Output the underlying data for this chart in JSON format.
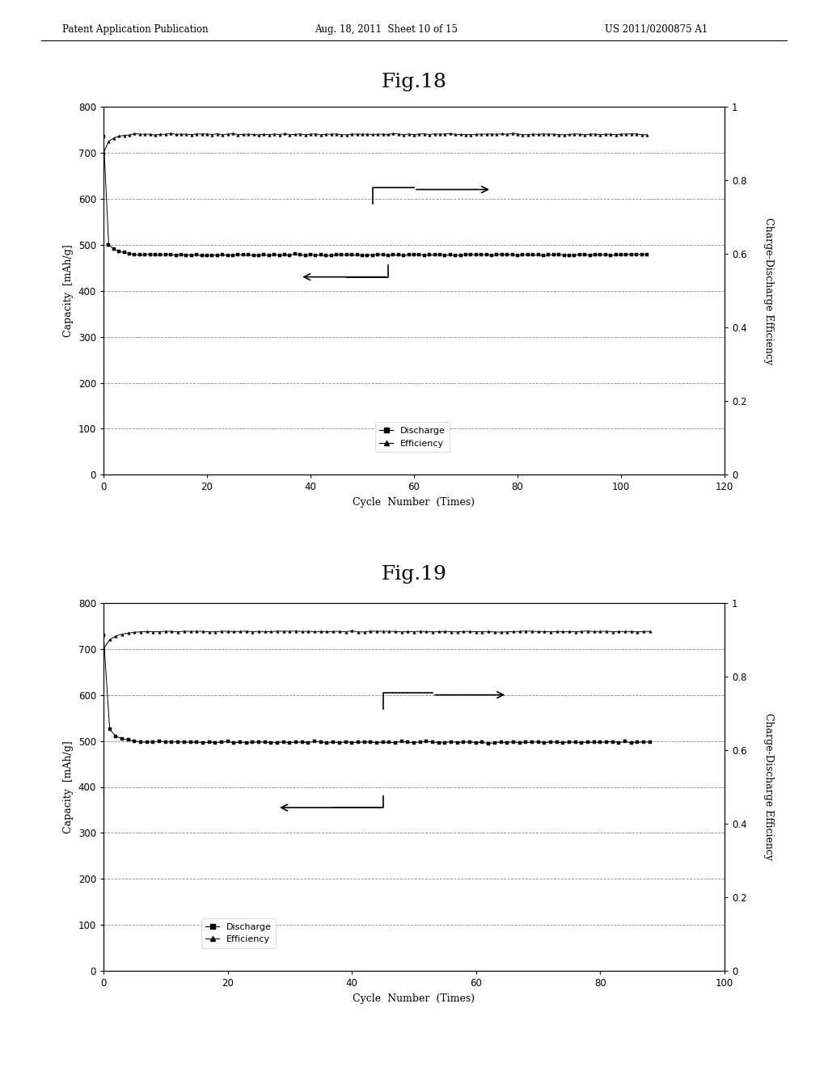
{
  "header_left": "Patent Application Publication",
  "header_mid": "Aug. 18, 2011  Sheet 10 of 15",
  "header_right": "US 2011/0200875 A1",
  "fig18_title": "Fig.18",
  "fig19_title": "Fig.19",
  "xlabel": "Cycle  Number  (Times)",
  "ylabel_left": "Capacity  [mAh/g]",
  "ylabel_right": "Charge-Discharge Efficiency",
  "ylim_left": [
    0,
    800
  ],
  "ylim_right": [
    0,
    1.0
  ],
  "yticks_left": [
    0,
    100,
    200,
    300,
    400,
    500,
    600,
    700,
    800
  ],
  "yticks_right": [
    0,
    0.2,
    0.4,
    0.6,
    0.8,
    1.0
  ],
  "fig18_xlim": [
    0,
    120
  ],
  "fig18_xticks": [
    0,
    20,
    40,
    60,
    80,
    100,
    120
  ],
  "fig19_xlim": [
    0,
    100
  ],
  "fig19_xticks": [
    0,
    20,
    40,
    60,
    80,
    100
  ],
  "legend_discharge": "Discharge",
  "legend_efficiency": "Efficiency",
  "bg_color": "#ffffff",
  "line_color": "#000000",
  "grid_color": "#555555"
}
